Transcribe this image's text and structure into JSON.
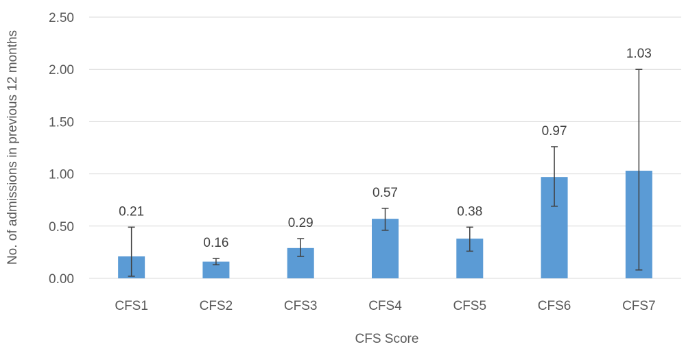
{
  "chart_data": {
    "type": "bar",
    "title": "",
    "xlabel": "CFS Score",
    "ylabel": "No. of admissions in previous 12 months",
    "categories": [
      "CFS1",
      "CFS2",
      "CFS3",
      "CFS4",
      "CFS5",
      "CFS6",
      "CFS7"
    ],
    "values": [
      0.21,
      0.16,
      0.29,
      0.57,
      0.38,
      0.97,
      1.03
    ],
    "data_labels": [
      "0.21",
      "0.16",
      "0.29",
      "0.57",
      "0.38",
      "0.97",
      "1.03"
    ],
    "error_low": [
      0.02,
      0.13,
      0.21,
      0.46,
      0.26,
      0.69,
      0.08
    ],
    "error_high": [
      0.49,
      0.19,
      0.38,
      0.67,
      0.49,
      1.26,
      2.0
    ],
    "ylim": [
      0,
      2.5
    ],
    "yticks": [
      0,
      0.5,
      1.0,
      1.5,
      2.0,
      2.5
    ],
    "ytick_labels": [
      "0.00",
      "0.50",
      "1.00",
      "1.50",
      "2.00",
      "2.50"
    ],
    "grid": true,
    "legend": "none",
    "colors": {
      "bar": "#5B9BD5",
      "error_bar": "#404040",
      "grid": "#D9D9D9",
      "text": "#595959"
    }
  }
}
